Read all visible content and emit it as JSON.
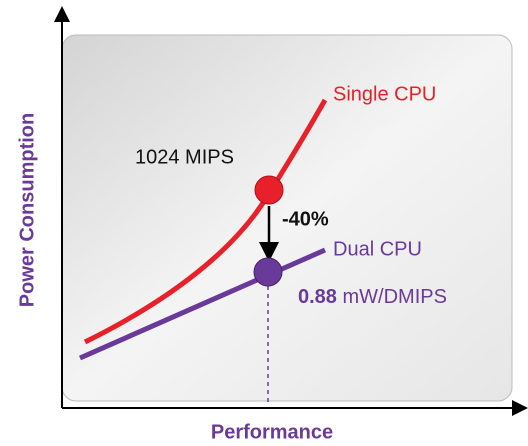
{
  "axes": {
    "y_label": "Power Consumption",
    "x_label": "Performance"
  },
  "curves": [
    {
      "label": "Single CPU",
      "annotation": "1024 MIPS"
    },
    {
      "label": "Dual CPU",
      "annotation_value": "0.88",
      "annotation_unit": "mW/DMIPS"
    }
  ],
  "reduction": "-40%"
}
